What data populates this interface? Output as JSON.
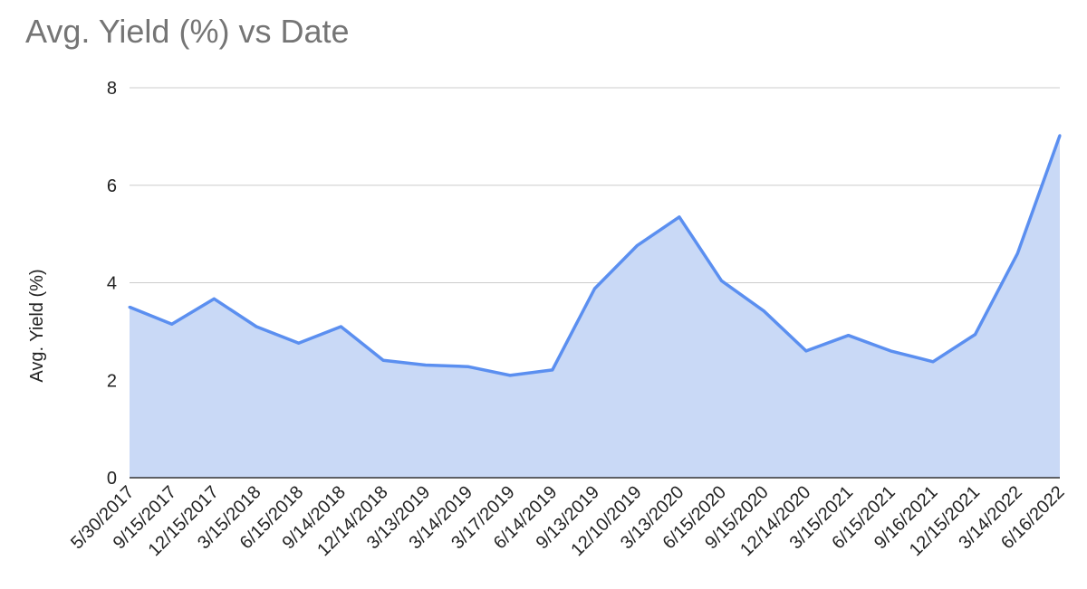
{
  "chart_data": {
    "type": "area",
    "title": "Avg. Yield (%) vs Date",
    "xlabel": "",
    "ylabel": "Avg. Yield (%)",
    "ylim": [
      0,
      8
    ],
    "yticks": [
      0,
      2,
      4,
      6,
      8
    ],
    "grid": true,
    "legend": "none",
    "colors": {
      "line": "#5b8ff0",
      "fill": "#c9d9f6",
      "grid": "#cccccc",
      "baseline": "#333333"
    },
    "x": [
      "5/30/2017",
      "9/15/2017",
      "12/15/2017",
      "3/15/2018",
      "6/15/2018",
      "9/14/2018",
      "12/14/2018",
      "3/13/2019",
      "3/14/2019",
      "3/17/2019",
      "6/14/2019",
      "9/13/2019",
      "12/10/2019",
      "3/13/2020",
      "6/15/2020",
      "9/15/2020",
      "12/14/2020",
      "3/15/2021",
      "6/15/2021",
      "9/16/2021",
      "12/15/2021",
      "3/14/2022",
      "6/16/2022"
    ],
    "values": [
      3.5,
      3.15,
      3.67,
      3.1,
      2.76,
      3.1,
      2.41,
      2.31,
      2.28,
      2.1,
      2.21,
      3.88,
      4.76,
      5.35,
      4.04,
      3.42,
      2.6,
      2.92,
      2.6,
      2.38,
      2.94,
      4.6,
      7.02
    ]
  }
}
